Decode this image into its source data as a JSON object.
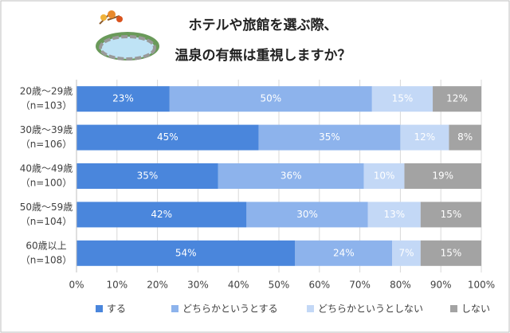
{
  "chart_data": {
    "type": "stacked-barh",
    "title": [
      "ホテルや旅館を選ぶ際、",
      "温泉の有無は重視しますか？"
    ],
    "categories": [
      [
        "20歳～29歳",
        "（n=103）"
      ],
      [
        "30歳～39歳",
        "（n=106）"
      ],
      [
        "40歳～49歳",
        "（n=100）"
      ],
      [
        "50歳～59歳",
        "（n=104）"
      ],
      [
        "60歳以上",
        "（n=108）"
      ]
    ],
    "series": [
      {
        "name": "する",
        "color": "#4a86dc",
        "values": [
          23,
          45,
          35,
          42,
          54
        ],
        "value_labels": [
          "23%",
          "45%",
          "35%",
          "42%",
          "54%"
        ]
      },
      {
        "name": "どちらかというとする",
        "color": "#8db3ec",
        "values": [
          50,
          35,
          36,
          30,
          24
        ],
        "value_labels": [
          "50%",
          "35%",
          "36%",
          "30%",
          "24%"
        ]
      },
      {
        "name": "どちらかというとしない",
        "color": "#c3d8f6",
        "values": [
          15,
          12,
          10,
          13,
          7
        ],
        "value_labels": [
          "15%",
          "12%",
          "10%",
          "13%",
          "7%"
        ]
      },
      {
        "name": "しない",
        "color": "#a3a3a3",
        "values": [
          12,
          8,
          19,
          15,
          15
        ],
        "value_labels": [
          "12%",
          "8%",
          "19%",
          "15%",
          "15%"
        ]
      }
    ],
    "xlim": [
      0,
      100
    ],
    "xticks": [
      {
        "value": 0,
        "label": "0%"
      },
      {
        "value": 10,
        "label": "10%"
      },
      {
        "value": 20,
        "label": "20%"
      },
      {
        "value": 30,
        "label": "30%"
      },
      {
        "value": 40,
        "label": "40%"
      },
      {
        "value": 50,
        "label": "50%"
      },
      {
        "value": 60,
        "label": "60%"
      },
      {
        "value": 70,
        "label": "70%"
      },
      {
        "value": 80,
        "label": "80%"
      },
      {
        "value": 90,
        "label": "90%"
      },
      {
        "value": 100,
        "label": "100%"
      }
    ],
    "grid": true,
    "legend": "bottom"
  }
}
